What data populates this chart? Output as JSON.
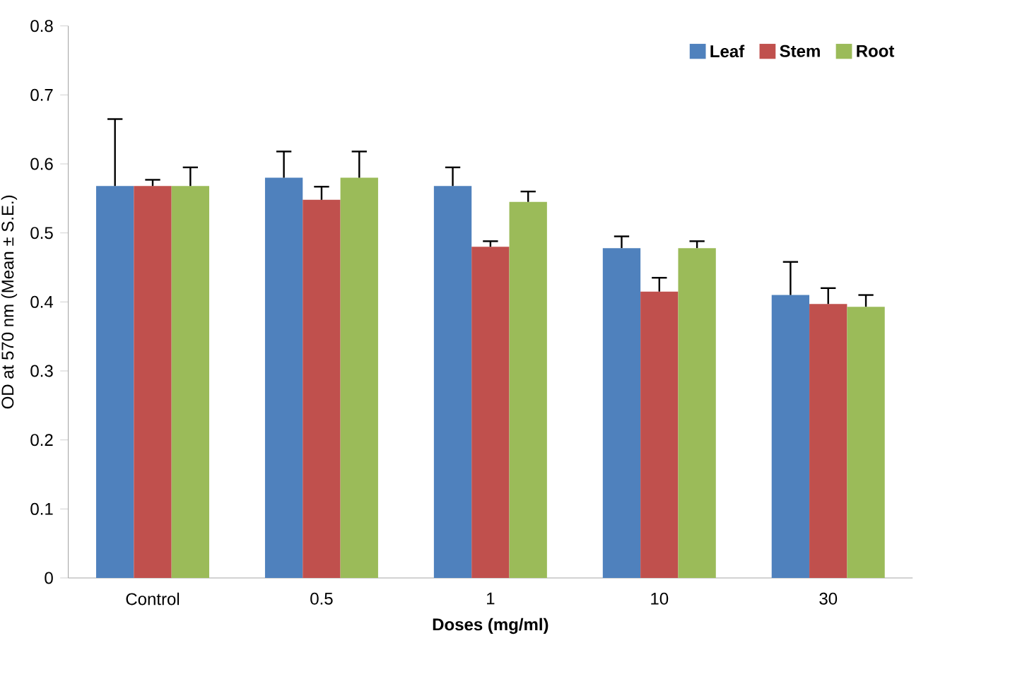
{
  "chart_data": {
    "type": "bar",
    "xlabel": "Doses (mg/ml)",
    "ylabel": "OD at 570 nm (Mean ± S.E.)",
    "categories": [
      "Control",
      "0.5",
      "1",
      "10",
      "30"
    ],
    "series": [
      {
        "name": "Leaf",
        "color": "#4f81bd",
        "values": [
          0.568,
          0.58,
          0.568,
          0.478,
          0.41
        ],
        "errors": [
          0.097,
          0.038,
          0.027,
          0.017,
          0.048
        ]
      },
      {
        "name": "Stem",
        "color": "#c0504d",
        "values": [
          0.568,
          0.548,
          0.48,
          0.415,
          0.397
        ],
        "errors": [
          0.009,
          0.019,
          0.008,
          0.02,
          0.023
        ]
      },
      {
        "name": "Root",
        "color": "#9bbb59",
        "values": [
          0.568,
          0.58,
          0.545,
          0.478,
          0.393
        ],
        "errors": [
          0.027,
          0.038,
          0.015,
          0.01,
          0.017
        ]
      }
    ],
    "ylim": [
      0,
      0.8
    ],
    "yticks": [
      0,
      0.1,
      0.2,
      0.3,
      0.4,
      0.5,
      0.6,
      0.7,
      0.8
    ],
    "legend": "top right"
  }
}
